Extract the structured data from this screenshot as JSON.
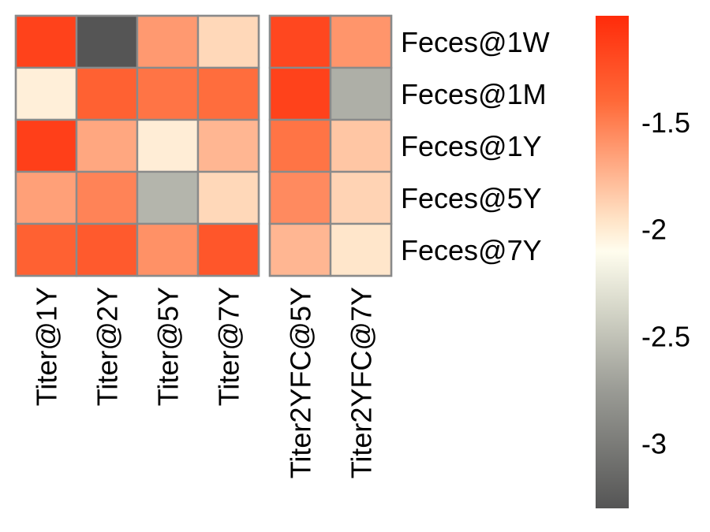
{
  "chart_data": {
    "type": "heatmap",
    "rows": [
      "Feces@1W",
      "Feces@1M",
      "Feces@1Y",
      "Feces@5Y",
      "Feces@7Y"
    ],
    "column_groups": [
      {
        "columns": [
          "Titer@1Y",
          "Titer@2Y",
          "Titer@5Y",
          "Titer@7Y"
        ]
      },
      {
        "columns": [
          "Titer2YFC@5Y",
          "Titer2YFC@7Y"
        ]
      }
    ],
    "values": [
      [
        -1.15,
        -3.3,
        -1.62,
        -1.9,
        -1.18,
        -1.6
      ],
      [
        -2.02,
        -1.35,
        -1.45,
        -1.42,
        -1.15,
        -2.62
      ],
      [
        -1.13,
        -1.68,
        -2.01,
        -1.75,
        -1.45,
        -1.82
      ],
      [
        -1.65,
        -1.52,
        -2.58,
        -1.9,
        -1.55,
        -1.88
      ],
      [
        -1.35,
        -1.3,
        -1.58,
        -1.28,
        -1.75,
        -1.97
      ]
    ],
    "color_scale": {
      "min": -3.3,
      "max": -1.0,
      "stops": [
        {
          "value": -3.3,
          "color": "#555555"
        },
        {
          "value": -2.75,
          "color": "#9a9b95"
        },
        {
          "value": -2.35,
          "color": "#d8d9cb"
        },
        {
          "value": -2.1,
          "color": "#fffdee"
        },
        {
          "value": -1.95,
          "color": "#ffe3c6"
        },
        {
          "value": -1.7,
          "color": "#ffab85"
        },
        {
          "value": -1.4,
          "color": "#ff6938"
        },
        {
          "value": -1.0,
          "color": "#ff2b0a"
        }
      ],
      "ticks": [
        -3,
        -2.5,
        -2,
        -1.5
      ],
      "tick_labels": [
        "-3",
        "-2.5",
        "-2",
        "-1.5"
      ]
    },
    "legend_placement": "right",
    "cell_border_color": "#8a8a8a"
  }
}
